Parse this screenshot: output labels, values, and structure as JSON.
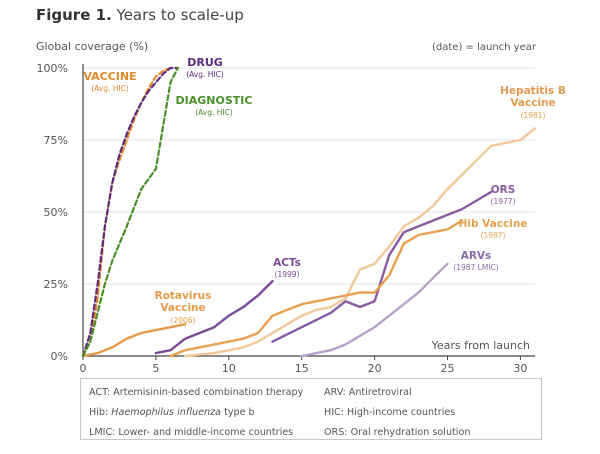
{
  "figure": {
    "label": "Figure 1.",
    "title": "Years to scale-up"
  },
  "chart_data": {
    "type": "line",
    "title": "Figure 1. Years to scale-up",
    "ylabel": "Global coverage (%)",
    "xlabel": "Years from launch",
    "note": "(date) = launch year",
    "xlim": [
      0,
      31
    ],
    "ylim": [
      0,
      100
    ],
    "xticks": [
      0,
      5,
      10,
      15,
      20,
      25,
      30
    ],
    "yticks": [
      0,
      25,
      50,
      75,
      100
    ],
    "ytick_labels": [
      "0%",
      "25%",
      "50%",
      "75%",
      "100%"
    ],
    "series": [
      {
        "id": "vaccine",
        "name": "VACCINE",
        "sub": "(Avg. HIC)",
        "color": "#e08a2c",
        "dash": true,
        "points": [
          [
            0,
            0
          ],
          [
            0.5,
            5
          ],
          [
            1,
            20
          ],
          [
            1.5,
            45
          ],
          [
            2,
            60
          ],
          [
            2.5,
            68
          ],
          [
            3,
            75
          ],
          [
            3.5,
            82
          ],
          [
            4,
            88
          ],
          [
            4.5,
            93
          ],
          [
            5,
            97
          ],
          [
            5.5,
            99
          ],
          [
            6,
            100
          ]
        ]
      },
      {
        "id": "drug",
        "name": "DRUG",
        "sub": "(Avg. HIC)",
        "color": "#5e2b7e",
        "dash": true,
        "points": [
          [
            0,
            0
          ],
          [
            0.5,
            8
          ],
          [
            1,
            25
          ],
          [
            1.5,
            45
          ],
          [
            2,
            60
          ],
          [
            2.5,
            70
          ],
          [
            3,
            77
          ],
          [
            3.5,
            83
          ],
          [
            4,
            88
          ],
          [
            4.5,
            92
          ],
          [
            5,
            95
          ],
          [
            5.5,
            98
          ],
          [
            6,
            100
          ],
          [
            6.5,
            100
          ]
        ]
      },
      {
        "id": "diagnostic",
        "name": "DIAGNOSTIC",
        "sub": "(Avg. HIC)",
        "color": "#4a8f2a",
        "dash": true,
        "points": [
          [
            0,
            0
          ],
          [
            0.5,
            5
          ],
          [
            1,
            15
          ],
          [
            1.5,
            25
          ],
          [
            2,
            33
          ],
          [
            3,
            45
          ],
          [
            4,
            58
          ],
          [
            5,
            65
          ],
          [
            5.5,
            80
          ],
          [
            6,
            95
          ],
          [
            6.5,
            100
          ]
        ]
      },
      {
        "id": "hepb",
        "name": "Hepatitis B Vaccine",
        "sub": "(1981)",
        "color": "#f2c89a",
        "dash": false,
        "points": [
          [
            7,
            0
          ],
          [
            9,
            1
          ],
          [
            10,
            2
          ],
          [
            11,
            3
          ],
          [
            12,
            5
          ],
          [
            13,
            8
          ],
          [
            14,
            11
          ],
          [
            15,
            14
          ],
          [
            16,
            16
          ],
          [
            17,
            17
          ],
          [
            18,
            20
          ],
          [
            19,
            30
          ],
          [
            20,
            32
          ],
          [
            21,
            38
          ],
          [
            22,
            45
          ],
          [
            23,
            48
          ],
          [
            24,
            52
          ],
          [
            25,
            58
          ],
          [
            26,
            63
          ],
          [
            27,
            68
          ],
          [
            28,
            73
          ],
          [
            29,
            74
          ],
          [
            30,
            75
          ],
          [
            31,
            79
          ]
        ]
      },
      {
        "id": "ors",
        "name": "ORS",
        "sub": "(1977)",
        "color": "#8a5aa3",
        "dash": false,
        "points": [
          [
            13,
            5
          ],
          [
            15,
            10
          ],
          [
            17,
            15
          ],
          [
            18,
            19
          ],
          [
            19,
            17
          ],
          [
            20,
            19
          ],
          [
            21,
            35
          ],
          [
            22,
            43
          ],
          [
            23,
            45
          ],
          [
            24,
            47
          ],
          [
            25,
            49
          ],
          [
            26,
            51
          ],
          [
            27,
            54
          ],
          [
            28,
            57
          ]
        ]
      },
      {
        "id": "hib",
        "name": "Hib Vaccine",
        "sub": "(1987)",
        "color": "#e8a050",
        "dash": false,
        "points": [
          [
            6,
            0
          ],
          [
            7,
            2
          ],
          [
            8,
            3
          ],
          [
            9,
            4
          ],
          [
            10,
            5
          ],
          [
            11,
            6
          ],
          [
            12,
            8
          ],
          [
            13,
            14
          ],
          [
            14,
            16
          ],
          [
            15,
            18
          ],
          [
            16,
            19
          ],
          [
            17,
            20
          ],
          [
            18,
            21
          ],
          [
            19,
            22
          ],
          [
            20,
            22
          ],
          [
            21,
            28
          ],
          [
            22,
            39
          ],
          [
            23,
            42
          ],
          [
            24,
            43
          ],
          [
            25,
            44
          ],
          [
            26,
            47
          ]
        ]
      },
      {
        "id": "arvs",
        "name": "ARVs",
        "sub": "(1987 LMIC)",
        "color": "#b7a2cc",
        "dash": false,
        "points": [
          [
            15,
            0
          ],
          [
            16,
            1
          ],
          [
            17,
            2
          ],
          [
            18,
            4
          ],
          [
            19,
            7
          ],
          [
            20,
            10
          ],
          [
            21,
            14
          ],
          [
            22,
            18
          ],
          [
            23,
            22
          ],
          [
            24,
            27
          ],
          [
            25,
            32
          ]
        ]
      },
      {
        "id": "acts",
        "name": "ACTs",
        "sub": "(1999)",
        "color": "#7b4a9b",
        "dash": false,
        "points": [
          [
            5,
            1
          ],
          [
            6,
            2
          ],
          [
            7,
            6
          ],
          [
            8,
            8
          ],
          [
            9,
            10
          ],
          [
            10,
            14
          ],
          [
            11,
            17
          ],
          [
            12,
            21
          ],
          [
            13,
            26
          ]
        ]
      },
      {
        "id": "rota",
        "name": "Rotavirus Vaccine",
        "sub": "(2006)",
        "color": "#e59a4a",
        "dash": false,
        "points": [
          [
            0,
            0
          ],
          [
            1,
            1
          ],
          [
            2,
            3
          ],
          [
            3,
            6
          ],
          [
            4,
            8
          ],
          [
            5,
            9
          ],
          [
            6,
            10
          ],
          [
            7,
            11
          ]
        ]
      }
    ]
  },
  "labels": {
    "vaccine": [
      "VACCINE",
      "(Avg. HIC)"
    ],
    "drug": [
      "DRUG",
      "(Avg. HIC)"
    ],
    "diagnostic": [
      "DIAGNOSTIC",
      "(Avg. HIC)"
    ],
    "hepb": [
      "Hepatitis B",
      "Vaccine",
      "(1981)"
    ],
    "ors": [
      "ORS",
      "(1977)"
    ],
    "hib": [
      "Hib Vaccine",
      "(1987)"
    ],
    "arvs": [
      "ARVs",
      "(1987 LMIC)"
    ],
    "acts": [
      "ACTs",
      "(1999)"
    ],
    "rota": [
      "Rotavirus",
      "Vaccine",
      "(2006)"
    ]
  },
  "legend": {
    "act": "ACT: Artemisinin-based combination therapy",
    "arv": "ARV: Antiretroviral",
    "hib_prefix": "Hib: ",
    "hib_italic": "Haemophilus influenza",
    "hib_suffix": " type b",
    "hic": "HIC: High-income countries",
    "lmic": "LMIC: Lower- and middle-income countries",
    "ors": "ORS: Oral rehydration solution"
  }
}
